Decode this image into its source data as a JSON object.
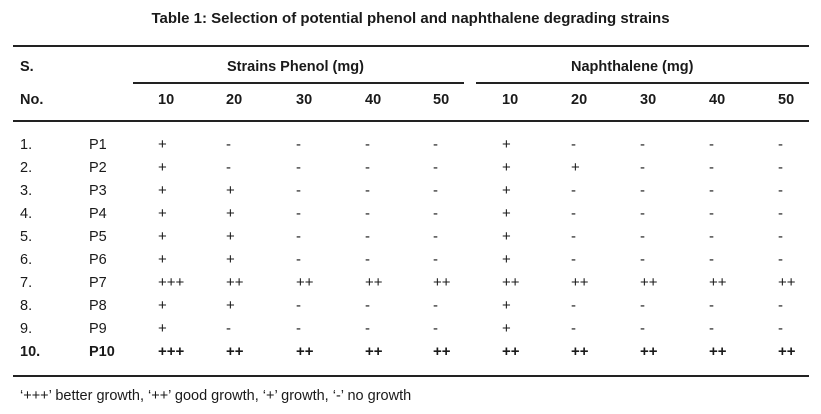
{
  "title": "Table 1: Selection of potential phenol and naphthalene degrading strains",
  "header": {
    "sno_line1": "S.",
    "sno_line2": "No.",
    "group1": "Strains  Phenol (mg)",
    "group2": "Naphthalene (mg)",
    "concentrations": [
      "10",
      "20",
      "30",
      "40",
      "50",
      "10",
      "20",
      "30",
      "40",
      "50"
    ]
  },
  "rows": [
    {
      "no": "1.",
      "strain": "P1",
      "values": [
        "+",
        "-",
        "-",
        "-",
        "-",
        "+",
        "-",
        "-",
        "-",
        "-"
      ]
    },
    {
      "no": "2.",
      "strain": "P2",
      "values": [
        "+",
        "-",
        "-",
        "-",
        "-",
        "+",
        "+",
        "-",
        "-",
        "-"
      ]
    },
    {
      "no": "3.",
      "strain": "P3",
      "values": [
        "+",
        "+",
        "-",
        "-",
        "-",
        "+",
        "-",
        "-",
        "-",
        "-"
      ]
    },
    {
      "no": "4.",
      "strain": "P4",
      "values": [
        "+",
        "+",
        "-",
        "-",
        "-",
        "+",
        "-",
        "-",
        "-",
        "-"
      ]
    },
    {
      "no": "5.",
      "strain": "P5",
      "values": [
        "+",
        "+",
        "-",
        "-",
        "-",
        "+",
        "-",
        "-",
        "-",
        "-"
      ]
    },
    {
      "no": "6.",
      "strain": "P6",
      "values": [
        "+",
        "+",
        "-",
        "-",
        "-",
        "+",
        "-",
        "-",
        "-",
        "-"
      ]
    },
    {
      "no": "7.",
      "strain": "P7",
      "values": [
        "+++",
        "++",
        "++",
        "++",
        "++",
        "++",
        "++",
        "++",
        "++",
        "++"
      ]
    },
    {
      "no": "8.",
      "strain": "P8",
      "values": [
        "+",
        "+",
        "-",
        "-",
        "-",
        "+",
        "-",
        "-",
        "-",
        "-"
      ]
    },
    {
      "no": "9.",
      "strain": "P9",
      "values": [
        "+",
        "-",
        "-",
        "-",
        "-",
        "+",
        "-",
        "-",
        "-",
        "-"
      ]
    },
    {
      "no": "10.",
      "strain": "P10",
      "values": [
        "+++",
        "++",
        "++",
        "++",
        "++",
        "++",
        "++",
        "++",
        "++",
        "++"
      ],
      "bold": true
    }
  ],
  "footnote": "‘+++’ better growth, ‘++’ good growth, ‘+’ growth, ‘-’ no growth"
}
